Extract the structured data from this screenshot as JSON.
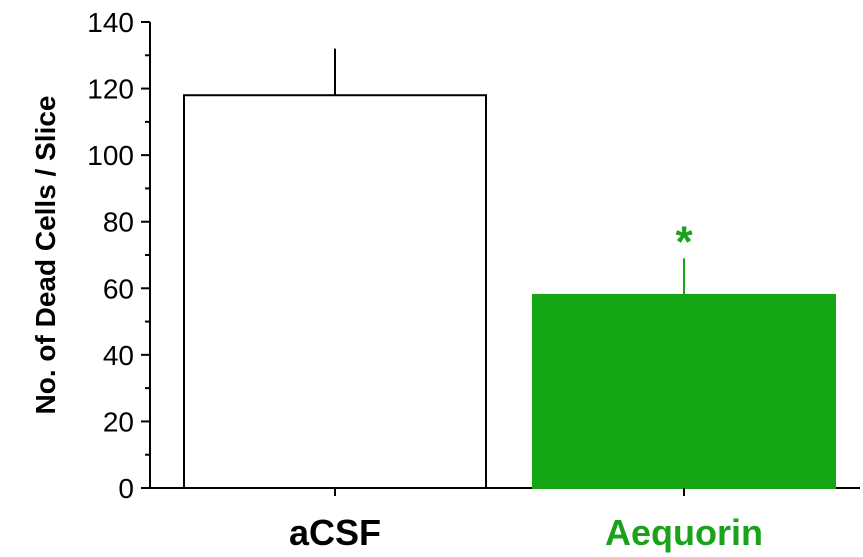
{
  "chart_data": {
    "type": "bar",
    "categories": [
      "aCSF",
      "Aequorin"
    ],
    "values": [
      118,
      58
    ],
    "errors": [
      14,
      11
    ],
    "bar_colors": [
      "#ffffff",
      "#14a614"
    ],
    "label_colors": [
      "#000000",
      "#1aa21a"
    ],
    "significance": [
      "",
      "*"
    ],
    "title": "",
    "xlabel": "",
    "ylabel": "No. of Dead Cells / Slice",
    "ylim": [
      0,
      140
    ],
    "yticks": [
      0,
      20,
      40,
      60,
      80,
      100,
      120,
      140
    ],
    "grid": false,
    "legend": "none"
  }
}
